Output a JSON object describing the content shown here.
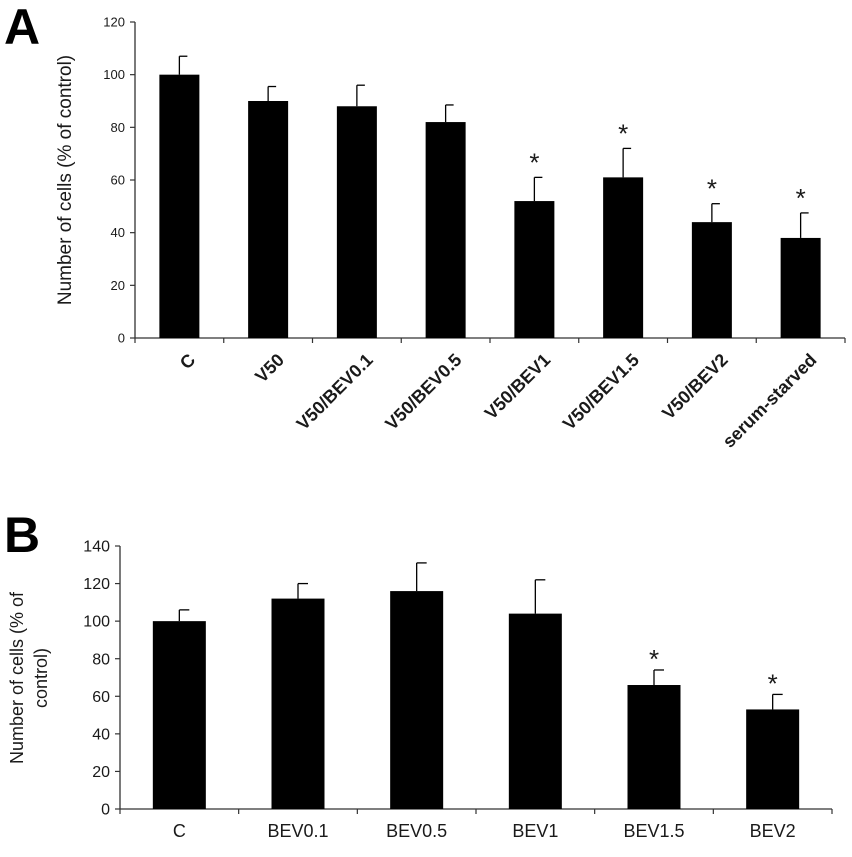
{
  "chart_data": [
    {
      "panel": "A",
      "type": "bar",
      "ylabel": "Number of cells (% of control)",
      "xlabel": "",
      "ylim": [
        0,
        120
      ],
      "yticks": [
        0,
        20,
        40,
        60,
        80,
        100,
        120
      ],
      "categories": [
        "C",
        "V50",
        "V50/BEV0.1",
        "V50/BEV0.5",
        "V50/BEV1",
        "V50/BEV1.5",
        "V50/BEV2",
        "serum-starved"
      ],
      "values": [
        100,
        90,
        88,
        82,
        52,
        61,
        44,
        38
      ],
      "error": [
        7,
        5.5,
        8,
        6.5,
        9,
        11,
        7,
        9.5
      ],
      "significant": [
        false,
        false,
        false,
        false,
        true,
        true,
        true,
        true
      ],
      "significance_marker": "*",
      "tick_label_rotation": "rotated 45°",
      "bar_color": "#000000"
    },
    {
      "panel": "B",
      "type": "bar",
      "ylabel": "Number of cells (% of control)",
      "xlabel": "",
      "ylim": [
        0,
        140
      ],
      "yticks": [
        0,
        20,
        40,
        60,
        80,
        100,
        120,
        140
      ],
      "categories": [
        "C",
        "BEV0.1",
        "BEV0.5",
        "BEV1",
        "BEV1.5",
        "BEV2"
      ],
      "values": [
        100,
        112,
        116,
        104,
        66,
        53
      ],
      "error": [
        6,
        8,
        15,
        18,
        8,
        8
      ],
      "significant": [
        false,
        false,
        false,
        false,
        true,
        true
      ],
      "significance_marker": "*",
      "tick_label_rotation": "horizontal",
      "bar_color": "#000000"
    }
  ]
}
